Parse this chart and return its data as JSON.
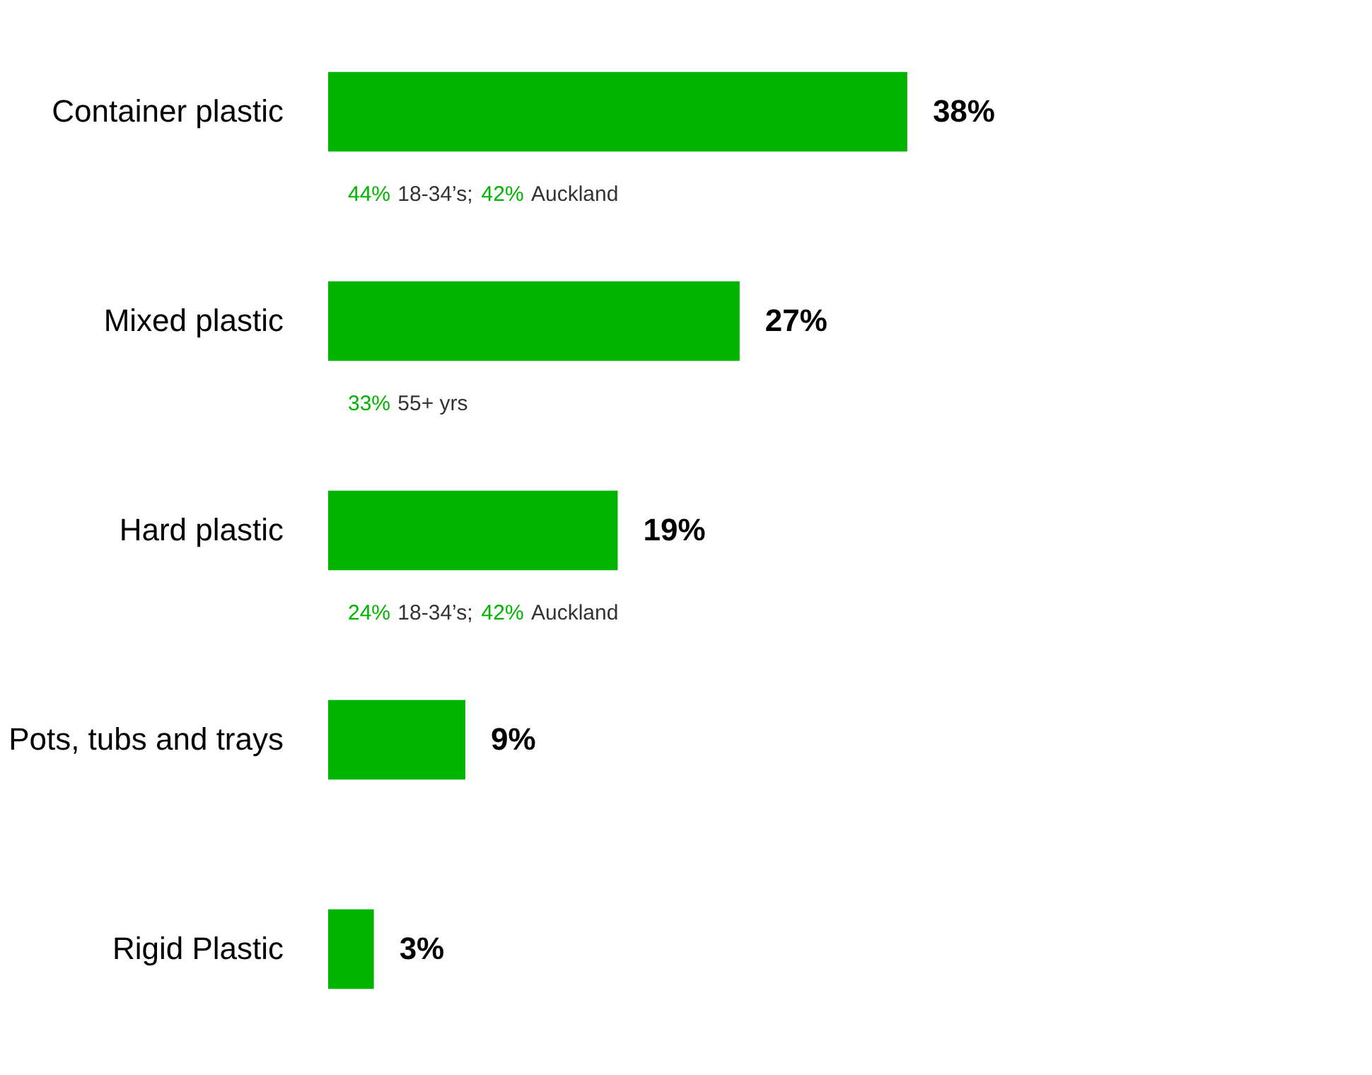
{
  "chart_data": {
    "type": "bar",
    "orientation": "horizontal",
    "data_labels": true,
    "categories": [
      "Container plastic",
      "Mixed plastic",
      "Hard plastic",
      "Pots, tubs and trays",
      "Rigid Plastic"
    ],
    "values": [
      38,
      27,
      19,
      9,
      3
    ],
    "value_labels": [
      "38%",
      "27%",
      "19%",
      "9%",
      "3%"
    ],
    "color": "#00b400",
    "annotations": [
      "44% 18-34’s; 42% Auckland",
      "33% 55+ yrs",
      "24% 18-34’s; 42% Auckland"
    ]
  }
}
